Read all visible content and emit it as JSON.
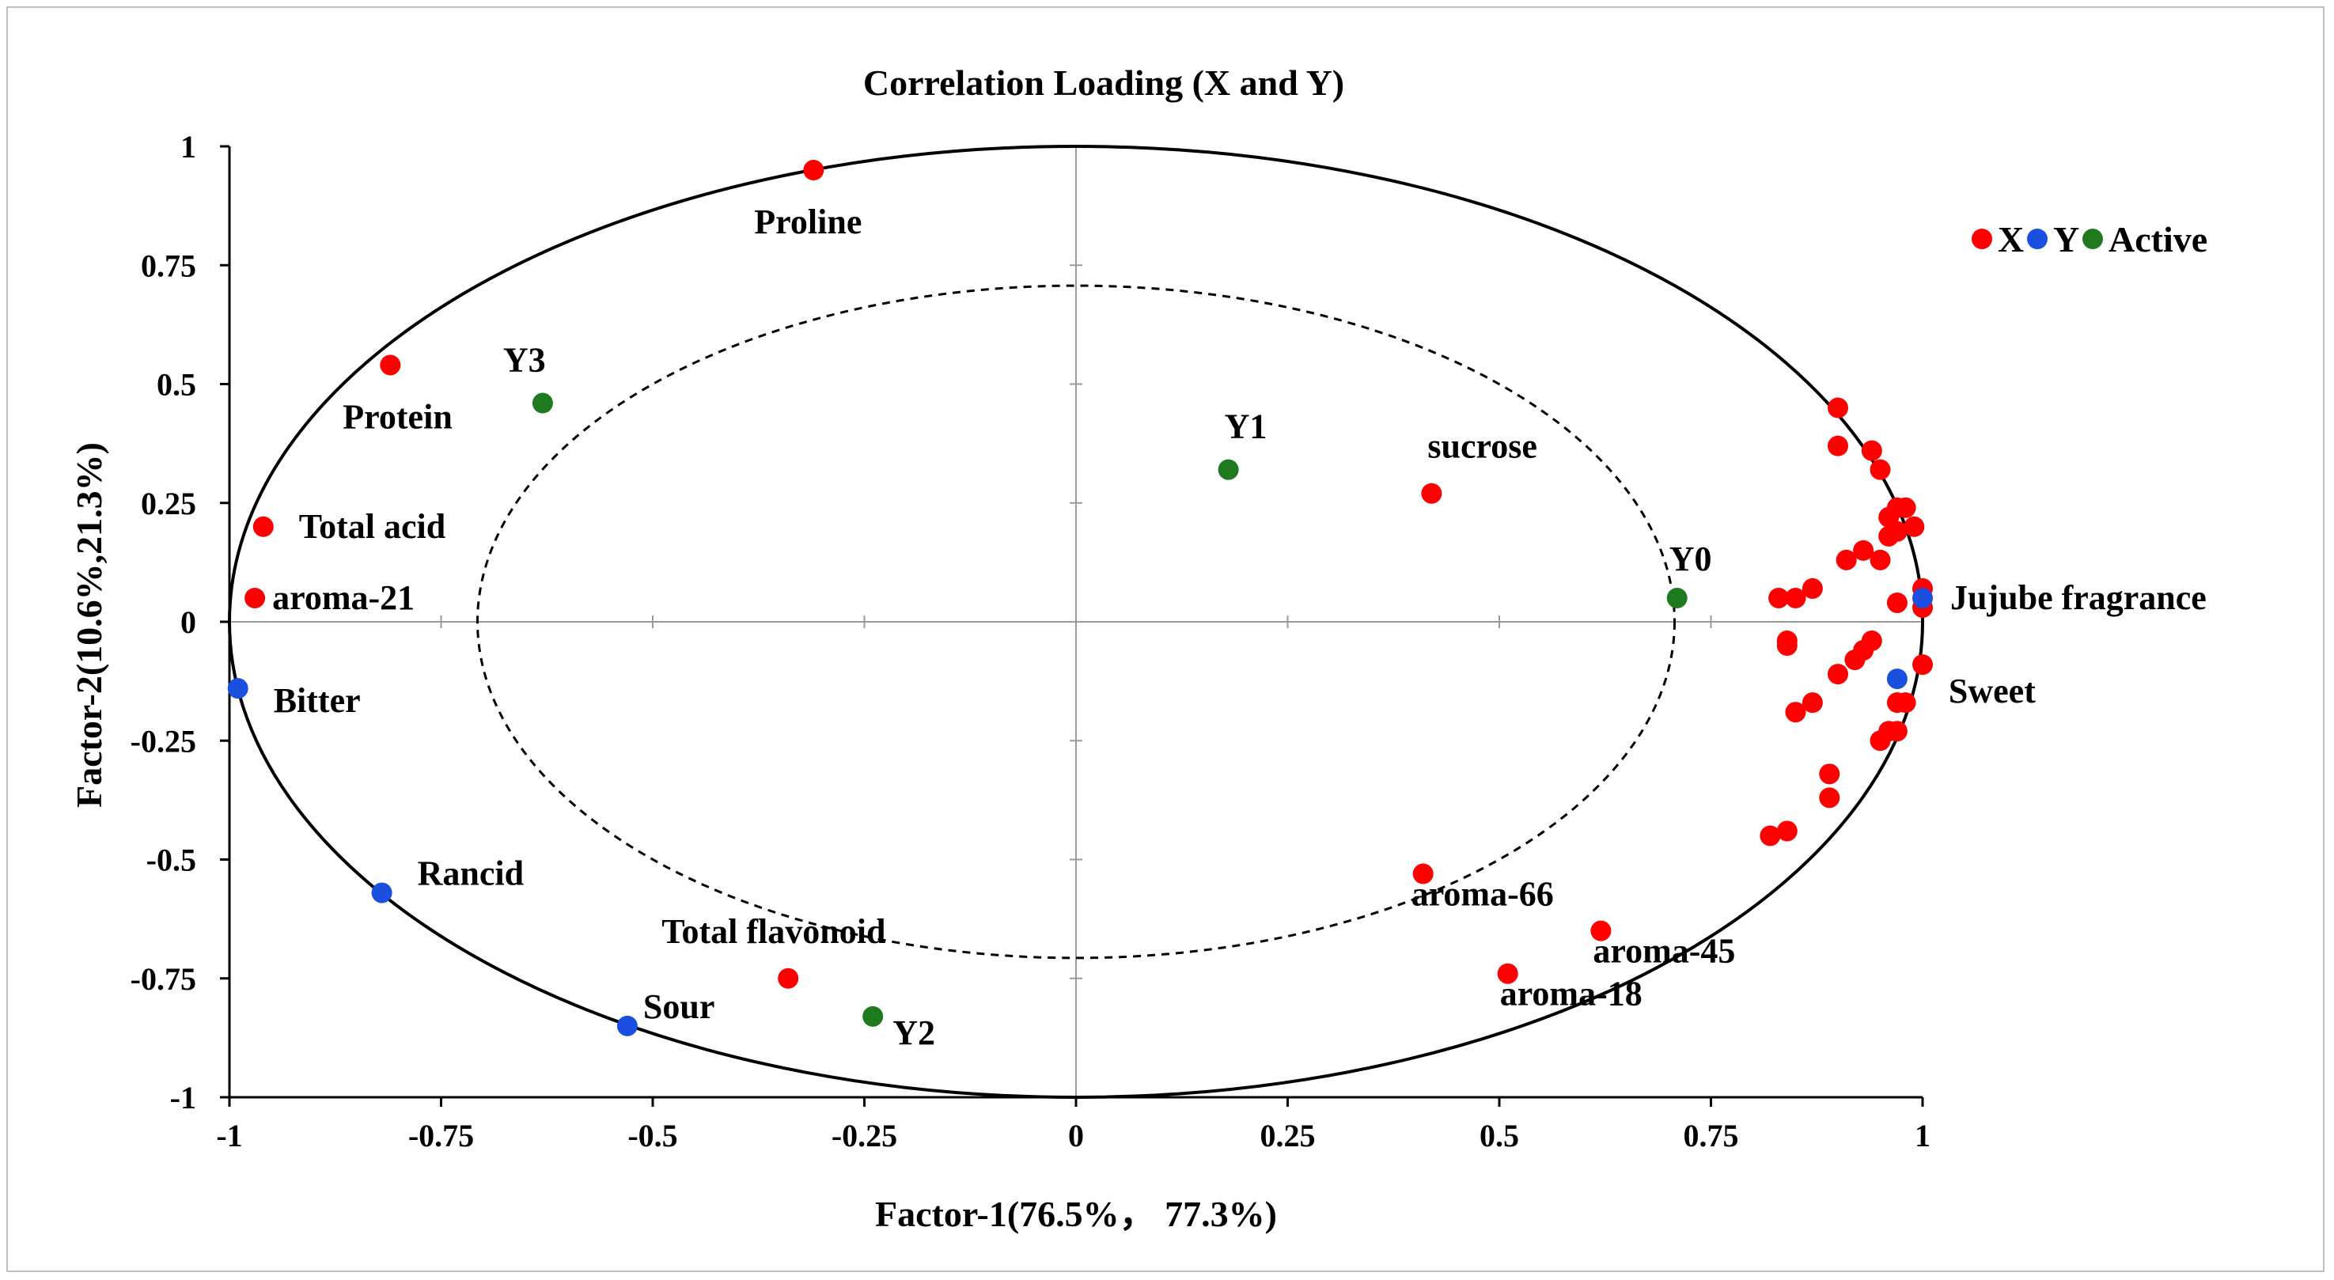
{
  "chart_data": {
    "type": "scatter",
    "title": "Correlation Loading (X and Y)",
    "xlabel": "Factor-1(76.5%， 77.3%)",
    "ylabel": "Factor-2(10.6%,21.3%)",
    "xlim": [
      -1,
      1
    ],
    "ylim": [
      -1,
      1
    ],
    "xticks": [
      -1,
      -0.75,
      -0.5,
      -0.25,
      0,
      0.25,
      0.5,
      0.75,
      1
    ],
    "yticks": [
      -1,
      -0.75,
      -0.5,
      -0.25,
      0,
      0.25,
      0.5,
      0.75,
      1
    ],
    "xtick_labels": [
      "-1",
      "-0.75",
      "-0.5",
      "-0.25",
      "0",
      "0.25",
      "0.5",
      "0.75",
      "1"
    ],
    "ytick_labels": [
      "-1",
      "-0.75",
      "-0.5",
      "-0.25",
      "0",
      "0.25",
      "0.5",
      "0.75",
      "1"
    ],
    "circles": [
      {
        "radius": 1.0,
        "style": "solid"
      },
      {
        "radius": 0.707,
        "style": "dashed"
      }
    ],
    "colors": {
      "X": "#ff0000",
      "Y": "#1a4fe0",
      "Active": "#1f7a1f"
    },
    "legend": {
      "position": "right",
      "entries": [
        {
          "name": "X",
          "color": "#ff0000"
        },
        {
          "name": "Y",
          "color": "#1a4fe0"
        },
        {
          "name": "Active",
          "color": "#1f7a1f"
        }
      ]
    },
    "series": [
      {
        "name": "X",
        "points": [
          {
            "x": -0.31,
            "y": 0.95,
            "label": "Proline"
          },
          {
            "x": -0.81,
            "y": 0.54,
            "label": "Protein"
          },
          {
            "x": -0.96,
            "y": 0.2,
            "label": "Total acid"
          },
          {
            "x": -0.97,
            "y": 0.05,
            "label": "aroma-21"
          },
          {
            "x": 0.42,
            "y": 0.27,
            "label": "sucrose"
          },
          {
            "x": 0.41,
            "y": -0.53,
            "label": "aroma-66"
          },
          {
            "x": 0.62,
            "y": -0.65,
            "label": "aroma-45"
          },
          {
            "x": 0.51,
            "y": -0.74,
            "label": "aroma-18"
          },
          {
            "x": -0.34,
            "y": -0.75,
            "label": "Total flavonoid"
          },
          {
            "x": 0.9,
            "y": 0.45,
            "label": ""
          },
          {
            "x": 0.9,
            "y": 0.37,
            "label": ""
          },
          {
            "x": 0.94,
            "y": 0.36,
            "label": ""
          },
          {
            "x": 0.95,
            "y": 0.32,
            "label": ""
          },
          {
            "x": 0.97,
            "y": 0.24,
            "label": ""
          },
          {
            "x": 0.98,
            "y": 0.24,
            "label": ""
          },
          {
            "x": 0.96,
            "y": 0.22,
            "label": ""
          },
          {
            "x": 0.99,
            "y": 0.2,
            "label": ""
          },
          {
            "x": 0.97,
            "y": 0.19,
            "label": ""
          },
          {
            "x": 0.96,
            "y": 0.18,
            "label": ""
          },
          {
            "x": 0.93,
            "y": 0.15,
            "label": ""
          },
          {
            "x": 0.91,
            "y": 0.13,
            "label": ""
          },
          {
            "x": 0.95,
            "y": 0.13,
            "label": ""
          },
          {
            "x": 0.87,
            "y": 0.07,
            "label": ""
          },
          {
            "x": 0.83,
            "y": 0.05,
            "label": ""
          },
          {
            "x": 0.85,
            "y": 0.05,
            "label": ""
          },
          {
            "x": 1.0,
            "y": 0.07,
            "label": ""
          },
          {
            "x": 0.97,
            "y": 0.04,
            "label": ""
          },
          {
            "x": 1.0,
            "y": 0.03,
            "label": ""
          },
          {
            "x": 0.84,
            "y": -0.04,
            "label": ""
          },
          {
            "x": 0.84,
            "y": -0.05,
            "label": ""
          },
          {
            "x": 0.94,
            "y": -0.04,
            "label": ""
          },
          {
            "x": 0.93,
            "y": -0.06,
            "label": ""
          },
          {
            "x": 0.92,
            "y": -0.08,
            "label": ""
          },
          {
            "x": 1.0,
            "y": -0.09,
            "label": ""
          },
          {
            "x": 0.9,
            "y": -0.11,
            "label": ""
          },
          {
            "x": 0.97,
            "y": -0.17,
            "label": ""
          },
          {
            "x": 0.98,
            "y": -0.17,
            "label": ""
          },
          {
            "x": 0.87,
            "y": -0.17,
            "label": ""
          },
          {
            "x": 0.85,
            "y": -0.19,
            "label": ""
          },
          {
            "x": 0.97,
            "y": -0.23,
            "label": ""
          },
          {
            "x": 0.96,
            "y": -0.23,
            "label": ""
          },
          {
            "x": 0.95,
            "y": -0.25,
            "label": ""
          },
          {
            "x": 0.89,
            "y": -0.32,
            "label": ""
          },
          {
            "x": 0.89,
            "y": -0.37,
            "label": ""
          },
          {
            "x": 0.84,
            "y": -0.44,
            "label": ""
          },
          {
            "x": 0.82,
            "y": -0.45,
            "label": ""
          }
        ]
      },
      {
        "name": "Y",
        "points": [
          {
            "x": 1.0,
            "y": 0.05,
            "label": "Jujube fragrance"
          },
          {
            "x": 0.97,
            "y": -0.12,
            "label": "Sweet"
          },
          {
            "x": -0.99,
            "y": -0.14,
            "label": "Bitter"
          },
          {
            "x": -0.82,
            "y": -0.57,
            "label": "Rancid"
          },
          {
            "x": -0.53,
            "y": -0.85,
            "label": "Sour"
          }
        ]
      },
      {
        "name": "Active",
        "points": [
          {
            "x": -0.63,
            "y": 0.46,
            "label": "Y3"
          },
          {
            "x": 0.18,
            "y": 0.32,
            "label": "Y1"
          },
          {
            "x": 0.71,
            "y": 0.05,
            "label": "Y0"
          },
          {
            "x": -0.24,
            "y": -0.83,
            "label": "Y2"
          }
        ]
      }
    ]
  }
}
